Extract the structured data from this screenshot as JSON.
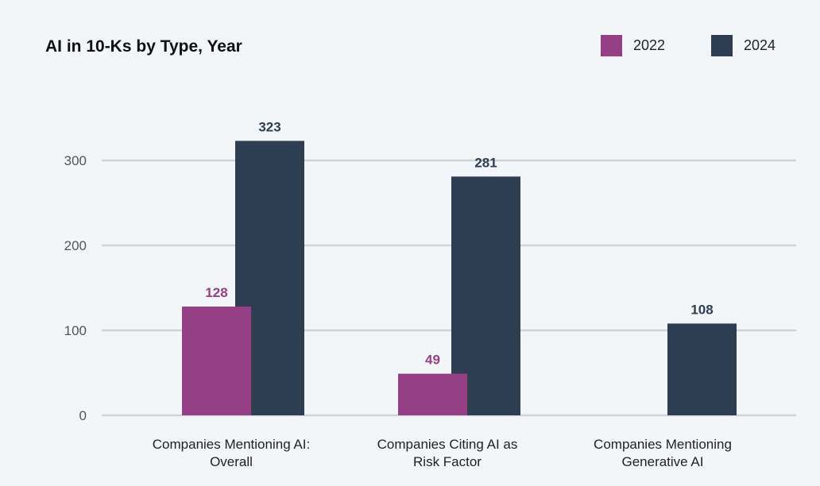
{
  "chart_data": {
    "type": "bar",
    "title": "AI in 10-Ks by Type, Year",
    "categories": [
      [
        "Companies Mentioning AI:",
        "Overall"
      ],
      [
        "Companies Citing AI as",
        "Risk Factor"
      ],
      [
        "Companies Mentioning",
        "Generative AI"
      ]
    ],
    "series": [
      {
        "name": "2022",
        "color": "#963f86",
        "values": [
          128,
          49,
          null
        ]
      },
      {
        "name": "2024",
        "color": "#2e3d52",
        "values": [
          323,
          281,
          108
        ]
      }
    ],
    "yticks": [
      0,
      100,
      200,
      300
    ],
    "ylim": [
      0,
      330
    ],
    "grid": true,
    "legend": "top-right",
    "xlabel": "",
    "ylabel": ""
  }
}
